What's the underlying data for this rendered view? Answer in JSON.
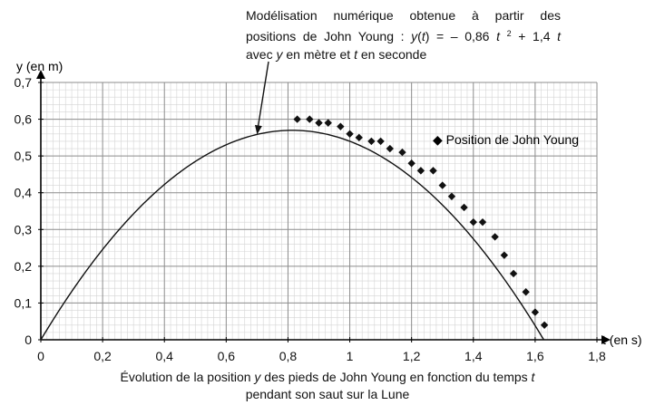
{
  "chart_data": {
    "type": "scatter",
    "title_lines": [
      "Évolution de la position y des pieds de John Young en fonction du temps t",
      "pendant son saut sur la Lune"
    ],
    "xlabel": "t  (en s)",
    "ylabel": "y (en m)",
    "xlim": [
      0,
      1.8
    ],
    "ylim": [
      0,
      0.7
    ],
    "x_ticks": [
      0,
      0.2,
      0.4,
      0.6,
      0.8,
      1,
      1.2,
      1.4,
      1.6,
      1.8
    ],
    "x_tick_labels": [
      "0",
      "0,2",
      "0,4",
      "0,6",
      "0,8",
      "1",
      "1,2",
      "1,4",
      "1,6",
      "1,8"
    ],
    "y_ticks": [
      0,
      0.1,
      0.2,
      0.3,
      0.4,
      0.5,
      0.6,
      0.7
    ],
    "y_tick_labels": [
      "0",
      "0,1",
      "0,2",
      "0,3",
      "0,4",
      "0,5",
      "0,6",
      "0,7"
    ],
    "grid": true,
    "legend": {
      "label": "Position de John Young",
      "marker": "◆",
      "placement": "right"
    },
    "series": [
      {
        "name": "Position de John Young",
        "kind": "points",
        "marker": "diamond",
        "x": [
          0.83,
          0.87,
          0.9,
          0.93,
          0.97,
          1.0,
          1.03,
          1.07,
          1.1,
          1.13,
          1.17,
          1.2,
          1.23,
          1.27,
          1.3,
          1.33,
          1.37,
          1.4,
          1.43,
          1.47,
          1.5,
          1.53,
          1.57,
          1.6,
          1.63
        ],
        "y": [
          0.6,
          0.6,
          0.59,
          0.59,
          0.58,
          0.56,
          0.55,
          0.54,
          0.54,
          0.52,
          0.51,
          0.48,
          0.46,
          0.46,
          0.42,
          0.39,
          0.36,
          0.32,
          0.32,
          0.28,
          0.23,
          0.18,
          0.13,
          0.075,
          0.04
        ]
      },
      {
        "kind": "curve",
        "model": {
          "a": -0.86,
          "b": 1.4
        },
        "x_range": [
          0,
          1.628
        ]
      }
    ],
    "annotation": {
      "line1": "Modélisation numérique obtenue à partir des",
      "line2_prefix": "positions de John Young :",
      "formula_y": "y",
      "formula_open": "(",
      "formula_t": "t",
      "formula_mid": ") = – 0,86",
      "formula_t2": "t",
      "formula_sup": "2",
      "formula_mid2": "+ 1,4",
      "formula_t3": "t",
      "line3_a": "avec",
      "line3_y": "y",
      "line3_b": "en mètre et",
      "line3_t": "t",
      "line3_c": "en seconde",
      "arrow_points_to_t": 0.7
    }
  }
}
